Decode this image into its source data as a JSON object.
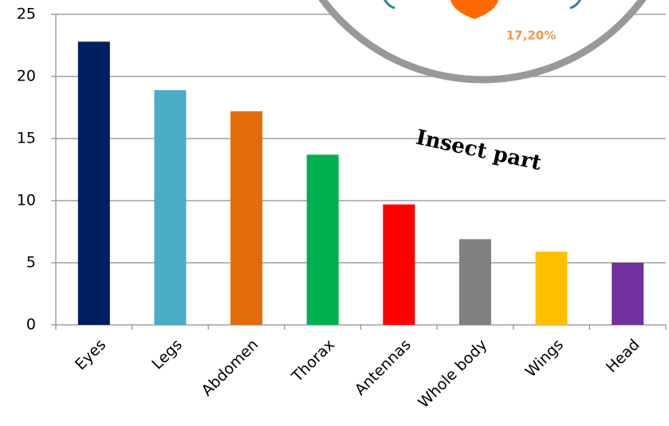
{
  "chart_data": {
    "type": "bar",
    "categories": [
      "Eyes",
      "Legs",
      "Abdomen",
      "Thorax",
      "Antennas",
      "Whole body",
      "Wings",
      "Head"
    ],
    "values": [
      22.8,
      18.9,
      17.2,
      13.7,
      9.7,
      6.9,
      5.9,
      5.0
    ],
    "colors": [
      "#002060",
      "#4bacc6",
      "#e36c0a",
      "#00b050",
      "#ff0000",
      "#808080",
      "#ffc000",
      "#7030a0"
    ],
    "ylim": [
      0,
      25
    ],
    "yticks": [
      0,
      5,
      10,
      15,
      20,
      25
    ],
    "grid": true,
    "annotations": [
      {
        "text": "17,20%"
      },
      {
        "text": "Insect part"
      }
    ]
  }
}
